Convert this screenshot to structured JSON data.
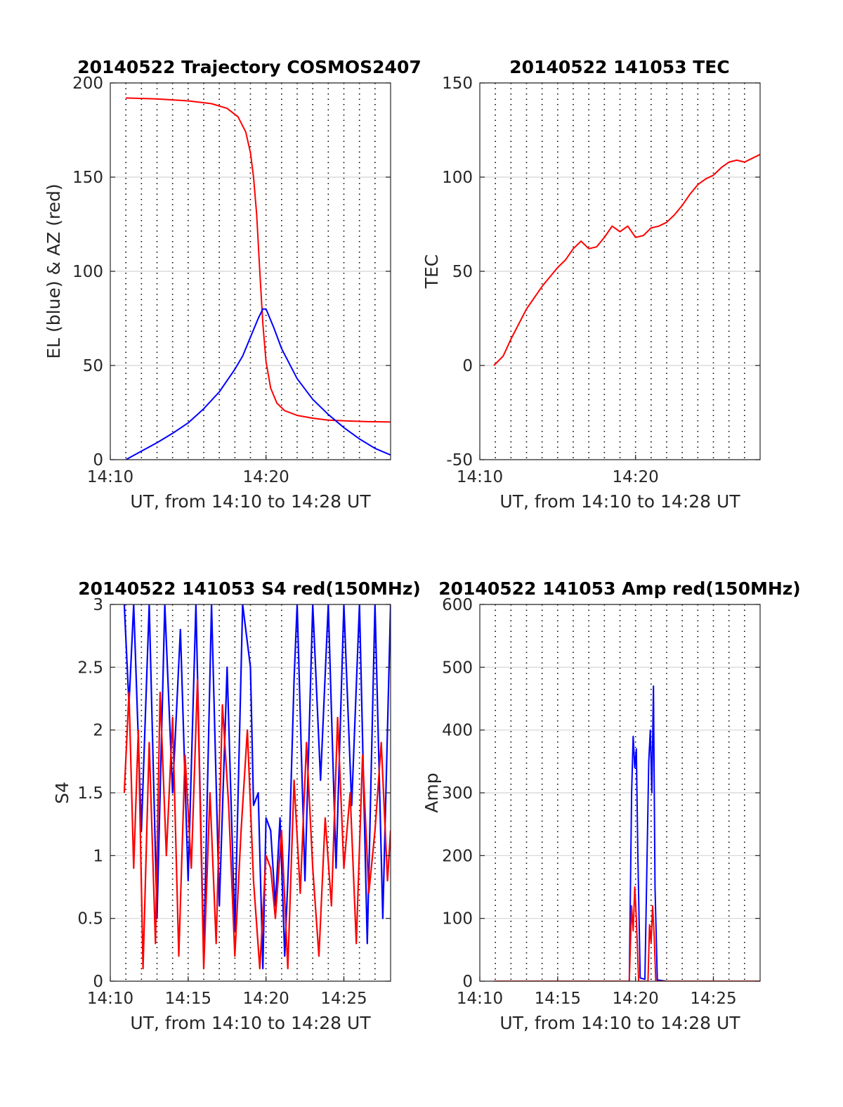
{
  "chart_data": [
    {
      "type": "line",
      "title": "20140522 Trajectory COSMOS2407",
      "xlabel": "UT, from 14:10 to 14:28 UT",
      "ylabel": "EL (blue) & AZ (red)",
      "xlim": [
        0,
        18
      ],
      "ylim": [
        0,
        200
      ],
      "xticks": [
        0,
        10
      ],
      "xtick_labels": [
        "14:10",
        "14:20"
      ],
      "yticks": [
        0,
        50,
        100,
        150,
        200
      ],
      "ytick_labels": [
        "0",
        "50",
        "100",
        "150",
        "200"
      ],
      "grid": "y solid gray, x dotted every minute",
      "series": [
        {
          "name": "",
          "color": "#ff0000",
          "x": [
            1,
            3,
            5,
            6.5,
            7.5,
            8.2,
            8.7,
            9.0,
            9.2,
            9.4,
            9.6,
            9.8,
            10.0,
            10.3,
            10.7,
            11.2,
            12,
            13,
            14,
            15.5,
            16.5,
            18
          ],
          "y": [
            192,
            191.5,
            190.5,
            189,
            186.5,
            182,
            174,
            163,
            150,
            130,
            100,
            72,
            52,
            38,
            30,
            26,
            23.5,
            22,
            21,
            20.5,
            20.2,
            20
          ]
        },
        {
          "name": "",
          "color": "#0000ff",
          "x": [
            1,
            2,
            3,
            4,
            5,
            6,
            7,
            8,
            8.5,
            9,
            9.5,
            9.8,
            10,
            10.5,
            11,
            12,
            13,
            14,
            15,
            16,
            17,
            18
          ],
          "y": [
            0,
            4.5,
            9,
            14,
            19.5,
            27,
            36,
            48,
            55,
            65,
            75,
            80,
            80,
            70,
            59,
            43,
            32,
            24,
            17,
            11,
            6,
            2.5
          ]
        }
      ]
    },
    {
      "type": "line",
      "title": "20140522 141053 TEC",
      "xlabel": "UT, from 14:10 to 14:28 UT",
      "ylabel": "TEC",
      "xlim": [
        0,
        18
      ],
      "ylim": [
        -50,
        150
      ],
      "xticks": [
        0,
        10
      ],
      "xtick_labels": [
        "14:10",
        "14:20"
      ],
      "yticks": [
        -50,
        0,
        50,
        100,
        150
      ],
      "ytick_labels": [
        "-50",
        "0",
        "50",
        "100",
        "150"
      ],
      "grid": "y solid gray, x dotted every minute",
      "series": [
        {
          "name": "",
          "color": "#ff0000",
          "x": [
            0.9,
            1.5,
            2,
            2.5,
            3,
            3.5,
            4,
            4.5,
            5,
            5.5,
            6,
            6.5,
            7,
            7.5,
            8,
            8.5,
            9,
            9.5,
            10,
            10.5,
            11,
            11.5,
            12,
            12.5,
            13,
            13.5,
            14,
            14.5,
            15,
            15.5,
            16,
            16.5,
            17,
            17.5,
            18
          ],
          "y": [
            0,
            5,
            14,
            22,
            30,
            36,
            42,
            47,
            52,
            56,
            62,
            66,
            62,
            63,
            68,
            74,
            71,
            74,
            68,
            69,
            73,
            74,
            76,
            80,
            85,
            91,
            96,
            99,
            101,
            105,
            108,
            109,
            108,
            110,
            112
          ]
        }
      ]
    },
    {
      "type": "line",
      "title": "20140522 141053 S4 red(150MHz)",
      "xlabel": "UT, from 14:10 to 14:28 UT",
      "ylabel": "S4",
      "xlim": [
        0,
        18
      ],
      "ylim": [
        0,
        3
      ],
      "xticks": [
        0,
        5,
        10,
        15
      ],
      "xtick_labels": [
        "14:10",
        "14:15",
        "14:20",
        "14:25"
      ],
      "yticks": [
        0,
        0.5,
        1,
        1.5,
        2,
        2.5,
        3
      ],
      "ytick_labels": [
        "0",
        "0.5",
        "1",
        "1.5",
        "2",
        "2.5",
        "3"
      ],
      "grid": "y solid gray, x dotted every minute",
      "series": [
        {
          "name": "",
          "color": "#0000ff",
          "x": [
            0.9,
            1.2,
            1.5,
            2,
            2.5,
            3,
            3.5,
            4,
            4.5,
            5,
            5.5,
            6,
            6.5,
            7,
            7.5,
            8,
            8.5,
            9,
            9.2,
            9.5,
            9.8,
            10.0,
            10.3,
            10.6,
            10.9,
            11.2,
            11.5,
            11.8,
            12,
            12.5,
            13,
            13.5,
            14,
            14.5,
            15,
            15.5,
            16,
            16.5,
            17,
            17.5,
            18
          ],
          "y": [
            3,
            2.2,
            3,
            1.2,
            3,
            0.5,
            3,
            1.5,
            2.8,
            0.8,
            3,
            0.2,
            3,
            0.6,
            2.5,
            0.4,
            3,
            2.5,
            1.4,
            1.5,
            0.1,
            1.3,
            1.2,
            0.6,
            1.3,
            0.2,
            1.1,
            2.4,
            3,
            0.8,
            3,
            1.6,
            3,
            0.9,
            3,
            1.4,
            3,
            0.3,
            3,
            0.5,
            3
          ]
        },
        {
          "name": "",
          "color": "#ff0000",
          "x": [
            0.9,
            1.2,
            1.5,
            1.8,
            2.1,
            2.5,
            2.9,
            3.2,
            3.6,
            4,
            4.4,
            4.8,
            5.2,
            5.6,
            6,
            6.4,
            6.8,
            7.2,
            7.6,
            8,
            8.4,
            8.8,
            9.2,
            9.6,
            10,
            10.3,
            10.6,
            11,
            11.4,
            11.8,
            12.2,
            12.6,
            13,
            13.4,
            13.8,
            14.2,
            14.6,
            15,
            15.4,
            15.8,
            16.2,
            16.6,
            17,
            17.4,
            17.8,
            18
          ],
          "y": [
            1.5,
            2.3,
            0.9,
            2.0,
            0.1,
            1.9,
            0.3,
            2.3,
            1.0,
            2.1,
            0.2,
            1.8,
            0.9,
            2.4,
            0.1,
            1.5,
            0.3,
            2.2,
            1.4,
            0.2,
            1.2,
            2.0,
            0.8,
            0.1,
            1.0,
            0.9,
            0.5,
            1.2,
            0.1,
            1.6,
            0.7,
            1.9,
            0.9,
            0.2,
            1.3,
            0.6,
            2.1,
            0.9,
            1.5,
            0.3,
            1.8,
            0.7,
            1.2,
            1.9,
            0.8,
            1.2
          ]
        }
      ]
    },
    {
      "type": "line",
      "title": "20140522 141053 Amp red(150MHz)",
      "xlabel": "UT, from 14:10 to 14:28 UT",
      "ylabel": "Amp",
      "xlim": [
        0,
        18
      ],
      "ylim": [
        0,
        600
      ],
      "xticks": [
        0,
        5,
        10,
        15
      ],
      "xtick_labels": [
        "14:10",
        "14:15",
        "14:20",
        "14:25"
      ],
      "yticks": [
        0,
        100,
        200,
        300,
        400,
        500,
        600
      ],
      "ytick_labels": [
        "0",
        "100",
        "200",
        "300",
        "400",
        "500",
        "600"
      ],
      "grid": "y solid gray, x dotted every minute",
      "series": [
        {
          "name": "",
          "color": "#0000ff",
          "x": [
            0.9,
            7.5,
            9.6,
            9.75,
            9.85,
            9.95,
            10.05,
            10.15,
            10.3,
            10.6,
            10.85,
            10.95,
            11.05,
            11.15,
            11.25,
            11.4,
            12,
            18
          ],
          "y": [
            0,
            0,
            0,
            300,
            390,
            340,
            370,
            200,
            5,
            3,
            350,
            400,
            300,
            470,
            150,
            2,
            0,
            0
          ]
        },
        {
          "name": "",
          "color": "#ff0000",
          "x": [
            0.9,
            9.6,
            9.75,
            9.85,
            9.95,
            10.05,
            10.2,
            10.8,
            10.9,
            11.0,
            11.1,
            11.2,
            11.3,
            18
          ],
          "y": [
            0,
            0,
            120,
            80,
            150,
            100,
            0,
            0,
            90,
            60,
            120,
            70,
            0,
            0
          ]
        }
      ]
    }
  ]
}
